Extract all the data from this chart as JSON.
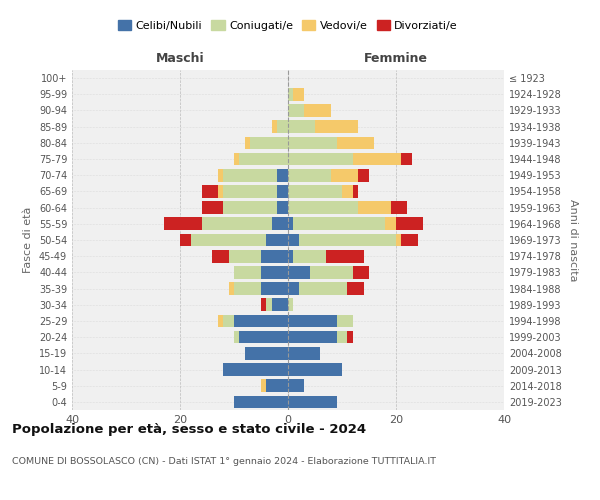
{
  "age_groups": [
    "0-4",
    "5-9",
    "10-14",
    "15-19",
    "20-24",
    "25-29",
    "30-34",
    "35-39",
    "40-44",
    "45-49",
    "50-54",
    "55-59",
    "60-64",
    "65-69",
    "70-74",
    "75-79",
    "80-84",
    "85-89",
    "90-94",
    "95-99",
    "100+"
  ],
  "birth_years": [
    "2019-2023",
    "2014-2018",
    "2009-2013",
    "2004-2008",
    "1999-2003",
    "1994-1998",
    "1989-1993",
    "1984-1988",
    "1979-1983",
    "1974-1978",
    "1969-1973",
    "1964-1968",
    "1959-1963",
    "1954-1958",
    "1949-1953",
    "1944-1948",
    "1939-1943",
    "1934-1938",
    "1929-1933",
    "1924-1928",
    "≤ 1923"
  ],
  "males": {
    "celibi": [
      10,
      4,
      12,
      8,
      9,
      10,
      3,
      5,
      5,
      5,
      4,
      3,
      2,
      2,
      2,
      0,
      0,
      0,
      0,
      0,
      0
    ],
    "coniugati": [
      0,
      0,
      0,
      0,
      1,
      2,
      1,
      5,
      5,
      6,
      14,
      13,
      10,
      10,
      10,
      9,
      7,
      2,
      0,
      0,
      0
    ],
    "vedovi": [
      0,
      1,
      0,
      0,
      0,
      1,
      0,
      1,
      0,
      0,
      0,
      0,
      0,
      1,
      1,
      1,
      1,
      1,
      0,
      0,
      0
    ],
    "divorziati": [
      0,
      0,
      0,
      0,
      0,
      0,
      1,
      0,
      0,
      3,
      2,
      7,
      4,
      3,
      0,
      0,
      0,
      0,
      0,
      0,
      0
    ]
  },
  "females": {
    "nubili": [
      9,
      3,
      10,
      6,
      9,
      9,
      0,
      2,
      4,
      1,
      2,
      1,
      0,
      0,
      0,
      0,
      0,
      0,
      0,
      0,
      0
    ],
    "coniugate": [
      0,
      0,
      0,
      0,
      2,
      3,
      1,
      9,
      8,
      6,
      18,
      17,
      13,
      10,
      8,
      12,
      9,
      5,
      3,
      1,
      0
    ],
    "vedove": [
      0,
      0,
      0,
      0,
      0,
      0,
      0,
      0,
      0,
      0,
      1,
      2,
      6,
      2,
      5,
      9,
      7,
      8,
      5,
      2,
      0
    ],
    "divorziate": [
      0,
      0,
      0,
      0,
      1,
      0,
      0,
      3,
      3,
      7,
      3,
      5,
      3,
      1,
      2,
      2,
      0,
      0,
      0,
      0,
      0
    ]
  },
  "colors": {
    "celibi": "#4472a8",
    "coniugati": "#c8d9a0",
    "vedovi": "#f5c96a",
    "divorziati": "#cc2222"
  },
  "title": "Popolazione per età, sesso e stato civile - 2024",
  "subtitle": "COMUNE DI BOSSOLASCO (CN) - Dati ISTAT 1° gennaio 2024 - Elaborazione TUTTITALIA.IT",
  "xlabel_left": "Maschi",
  "xlabel_right": "Femmine",
  "ylabel_left": "Fasce di età",
  "ylabel_right": "Anni di nascita",
  "xlim": 40,
  "bg_color": "#f0f0f0",
  "grid_color": "#cccccc"
}
